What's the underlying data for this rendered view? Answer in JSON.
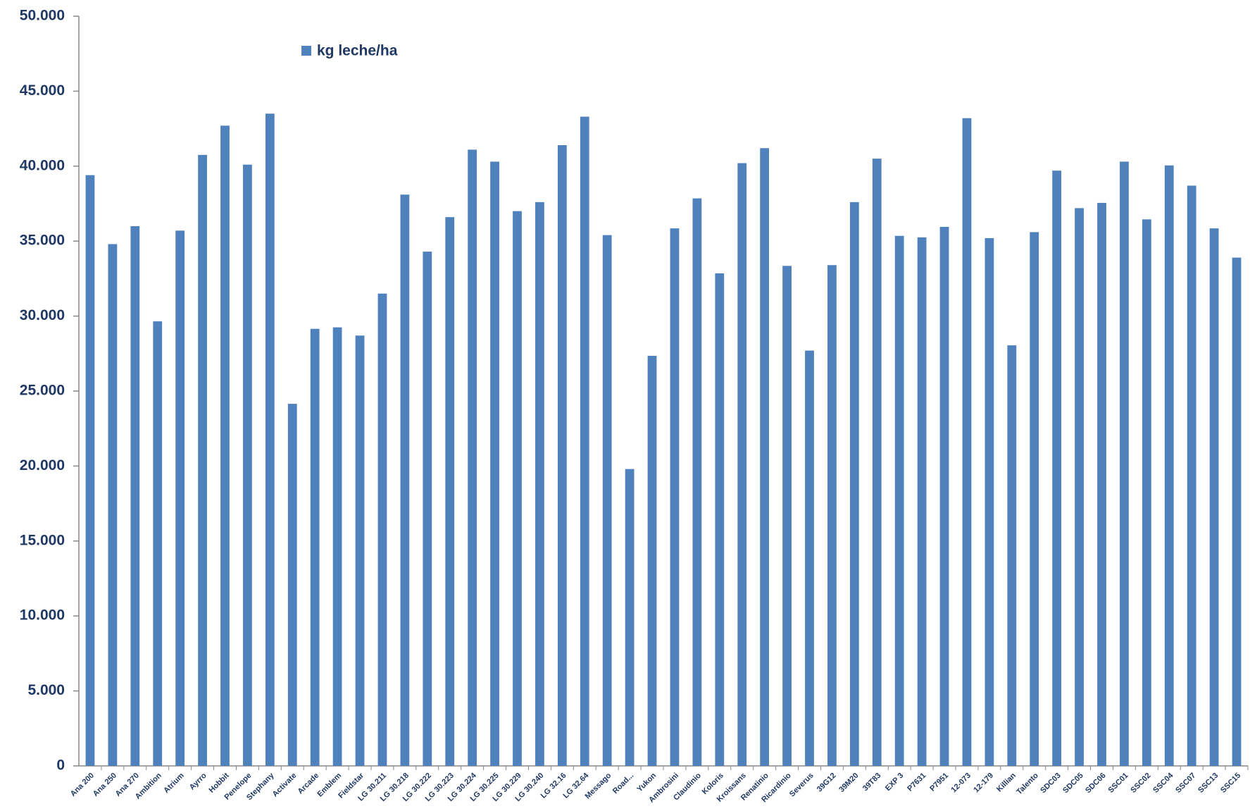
{
  "chart_data": {
    "type": "bar",
    "categories": [
      "Ana 200",
      "Ana 250",
      "Ana 270",
      "Ambition",
      "Atrium",
      "Ayrro",
      "Hobbit",
      "Penelope",
      "Stephany",
      "Activate",
      "Arcade",
      "Emblem",
      "Fieldstar",
      "LG 30.211",
      "LG 30.218",
      "LG 30.222",
      "LG 30.223",
      "LG 30.224",
      "LG 30.225",
      "LG 30.229",
      "LG 30.240",
      "LG 32.16",
      "LG 32.64",
      "Messago",
      "Road...",
      "Yukon",
      "Ambrosini",
      "Claudinio",
      "Koloris",
      "Kroissans",
      "Renatinio",
      "Ricardinio",
      "Severus",
      "39G12",
      "39M20",
      "39T83",
      "EXP 3",
      "P7631",
      "P7951",
      "12-073",
      "12-179",
      "Killian",
      "Talento",
      "SDC03",
      "SDC05",
      "SDC06",
      "SSC01",
      "SSC02",
      "SSC04",
      "SSC07",
      "SSC13",
      "SSC15"
    ],
    "series": [
      {
        "name": "kg leche/ha",
        "color": "#4f81bd",
        "values": [
          39400,
          34800,
          36000,
          29650,
          35700,
          40750,
          42700,
          40100,
          43500,
          24150,
          29150,
          29250,
          28700,
          31500,
          38100,
          34300,
          36600,
          41100,
          40300,
          37000,
          37600,
          41400,
          43300,
          35400,
          19800,
          27350,
          35850,
          37850,
          32850,
          40200,
          41200,
          33350,
          27700,
          33400,
          37600,
          40500,
          35350,
          35250,
          35950,
          43200,
          35200,
          28050,
          35600,
          39700,
          37200,
          37550,
          40300,
          36450,
          40050,
          38700,
          35850,
          33900
        ]
      }
    ],
    "ylim": [
      0,
      50000
    ],
    "yticks": [
      0,
      {
        "value": 5000,
        "label": "5.000"
      },
      {
        "value": 10000,
        "label": "10.000"
      },
      {
        "value": 15000,
        "label": "15.000"
      },
      {
        "value": 20000,
        "label": "20.000"
      },
      {
        "value": 25000,
        "label": "25.000"
      },
      {
        "value": 30000,
        "label": "30.000"
      },
      {
        "value": 35000,
        "label": "35.000"
      },
      {
        "value": 40000,
        "label": "40.000"
      },
      {
        "value": 45000,
        "label": "45.000"
      },
      {
        "value": 50000,
        "label": "50.000"
      }
    ],
    "grid": false
  }
}
